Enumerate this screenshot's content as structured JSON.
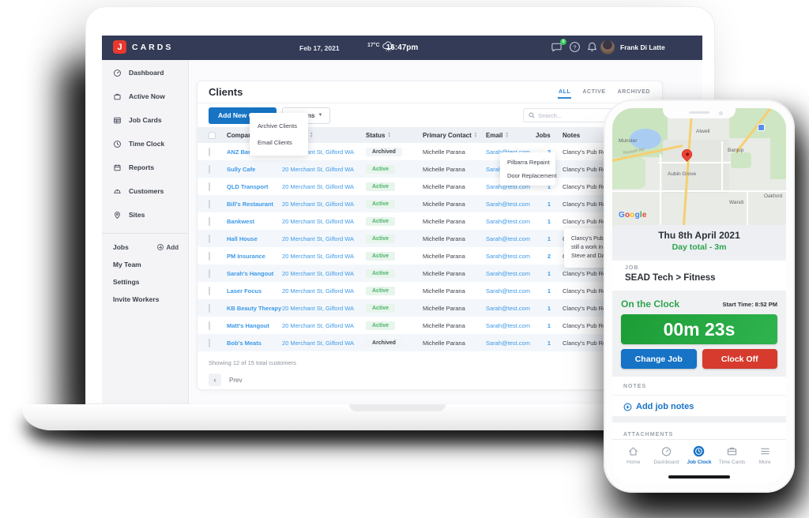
{
  "header": {
    "logo_letter": "J",
    "logo_text": "CARDS",
    "date": "Feb 17, 2021",
    "temperature": "17°C",
    "time": "16:47pm",
    "notification_badge": "0",
    "user_name": "Frank Di Latte"
  },
  "sidebar": {
    "items": [
      {
        "label": "Dashboard"
      },
      {
        "label": "Active Now"
      },
      {
        "label": "Job Cards"
      },
      {
        "label": "Time Clock"
      },
      {
        "label": "Reports"
      },
      {
        "label": "Customers"
      },
      {
        "label": "Sites"
      }
    ],
    "secondary": {
      "jobs_label": "Jobs",
      "add_label": "Add",
      "items": [
        {
          "label": "My Team"
        },
        {
          "label": "Settings"
        },
        {
          "label": "Invite Workers"
        }
      ]
    }
  },
  "clients": {
    "title": "Clients",
    "tabs": [
      {
        "label": "ALL"
      },
      {
        "label": "ACTIVE"
      },
      {
        "label": "ARCHIVED"
      }
    ],
    "add_button": "Add New Client",
    "actions_button": "Actions",
    "actions_menu": [
      "Archive Clients",
      "Email Clients"
    ],
    "search_placeholder": "Search...",
    "table": {
      "columns": [
        "Company",
        "Address",
        "Status",
        "Primary Contact",
        "Email",
        "Jobs",
        "Notes"
      ],
      "rows": [
        {
          "company": "ANZ Bank",
          "address": "20 Merchant St, Gilford WA",
          "status": "Archived",
          "contact": "Michelle Parana",
          "email": "Sarah@test.com",
          "jobs": "2",
          "notes": "Clancy's Pub Renov"
        },
        {
          "company": "Sully Cafe",
          "address": "20 Merchant St, Gilford WA",
          "status": "Active",
          "contact": "Michelle Parana",
          "email": "Sarah@test.com",
          "jobs": "2",
          "notes": "Clancy's Pub Renov"
        },
        {
          "company": "QLD Transport",
          "address": "20 Merchant St, Gilford WA",
          "status": "Active",
          "contact": "Michelle Parana",
          "email": "Sarah@test.com",
          "jobs": "1",
          "notes": "Clancy's Pub Renov"
        },
        {
          "company": "Bill's Restaurant",
          "address": "20 Merchant St, Gilford WA",
          "status": "Active",
          "contact": "Michelle Parana",
          "email": "Sarah@test.com",
          "jobs": "1",
          "notes": "Clancy's Pub Renov"
        },
        {
          "company": "Bankwest",
          "address": "20 Merchant St, Gilford WA",
          "status": "Active",
          "contact": "Michelle Parana",
          "email": "Sarah@test.com",
          "jobs": "1",
          "notes": "Clancy's Pub Renov"
        },
        {
          "company": "Hall House",
          "address": "20 Merchant St, Gilford WA",
          "status": "Active",
          "contact": "Michelle Parana",
          "email": "Sarah@test.com",
          "jobs": "1",
          "notes": "Clancy's Pub Renov"
        },
        {
          "company": "PM Insurance",
          "address": "20 Merchant St, Gilford WA",
          "status": "Active",
          "contact": "Michelle Parana",
          "email": "Sarah@test.com",
          "jobs": "2",
          "notes": "Clancy's Pub Renov"
        },
        {
          "company": "Sarah's Hangout",
          "address": "20 Merchant St, Gilford WA",
          "status": "Active",
          "contact": "Michelle Parana",
          "email": "Sarah@test.com",
          "jobs": "1",
          "notes": "Clancy's Pub Renov"
        },
        {
          "company": "Laser Focus",
          "address": "20 Merchant St, Gilford WA",
          "status": "Active",
          "contact": "Michelle Parana",
          "email": "Sarah@test.com",
          "jobs": "1",
          "notes": "Clancy's Pub Renov"
        },
        {
          "company": "KB Beauty Therapy",
          "address": "20 Merchant St, Gilford WA",
          "status": "Active",
          "contact": "Michelle Parana",
          "email": "Sarah@test.com",
          "jobs": "1",
          "notes": "Clancy's Pub Renov"
        },
        {
          "company": "Matt's Hangout",
          "address": "20 Merchant St, Gilford WA",
          "status": "Active",
          "contact": "Michelle Parana",
          "email": "Sarah@test.com",
          "jobs": "1",
          "notes": "Clancy's Pub Renov"
        },
        {
          "company": "Bob's Meats",
          "address": "20 Merchant St, Gilford WA",
          "status": "Archived",
          "contact": "Michelle Parana",
          "email": "Sarah@test.com",
          "jobs": "1",
          "notes": "Clancy's Pub Renov"
        }
      ]
    },
    "jobs_popup": [
      "Pilbarra Repaint",
      "Door Replacement"
    ],
    "notes_tooltip": [
      "Clancy's Pub Ren.",
      "still a work in prog",
      "Steve and Dave."
    ],
    "footer": {
      "showing": "Showing 12 of 15 total customers",
      "prev": "Prev"
    }
  },
  "phone": {
    "map": {
      "labels": [
        "Munster",
        "Russell Rd",
        "Atwell",
        "Banjup",
        "Aubin Grove",
        "Wandi",
        "Oakford"
      ],
      "google_letters": [
        "G",
        "o",
        "o",
        "g",
        "l",
        "e"
      ]
    },
    "day": {
      "date": "Thu 8th April 2021",
      "total": "Day total - 3m"
    },
    "job": {
      "label": "JOB",
      "value": "SEAD Tech > Fitness"
    },
    "clock": {
      "status": "On the Clock",
      "start": "Start Time: 8:52 PM",
      "timer": "00m 23s",
      "change_job": "Change Job",
      "clock_off": "Clock Off"
    },
    "notes": {
      "label": "NOTES",
      "add": "Add job notes"
    },
    "attachments": {
      "label": "ATTACHMENTS"
    },
    "nav": [
      {
        "label": "Home"
      },
      {
        "label": "Dashboard"
      },
      {
        "label": "Job Clock"
      },
      {
        "label": "Time Cards"
      },
      {
        "label": "More"
      }
    ]
  },
  "colors": {
    "accent_blue": "#1673c6",
    "green": "#2da44e",
    "red": "#d63b2e",
    "navy": "#333b56",
    "logo_red": "#e8392e"
  }
}
